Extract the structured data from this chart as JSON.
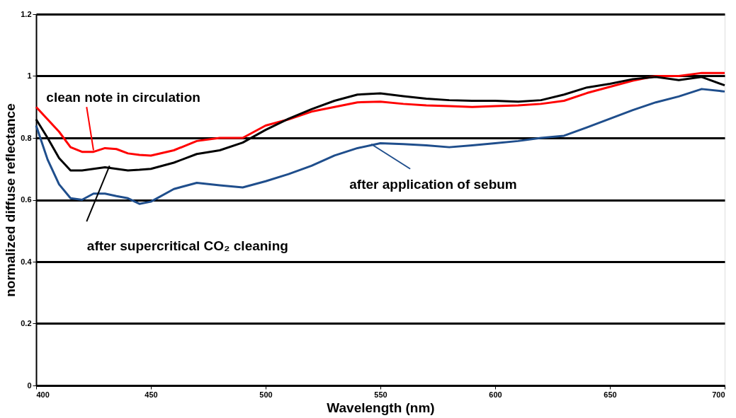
{
  "chart_data": {
    "type": "line",
    "xlabel": "Wavelength (nm)",
    "ylabel": "normalized diffuse reflectance",
    "xlim": [
      400,
      700
    ],
    "xticks": [
      400,
      450,
      500,
      550,
      600,
      650,
      700
    ],
    "ylim": [
      0,
      1.2
    ],
    "yticks": [
      0,
      0.2,
      0.4,
      0.6,
      0.8,
      1,
      1.2
    ],
    "grid": "y",
    "legend": false,
    "marker": "none",
    "line_style": "solid",
    "x": [
      400,
      405,
      410,
      415,
      420,
      425,
      430,
      435,
      440,
      445,
      450,
      460,
      470,
      480,
      490,
      500,
      510,
      520,
      530,
      540,
      550,
      560,
      570,
      580,
      590,
      600,
      610,
      620,
      630,
      640,
      650,
      660,
      670,
      680,
      690,
      700
    ],
    "series": [
      {
        "color": "#ff0000",
        "values": [
          0.9,
          0.86,
          0.82,
          0.77,
          0.755,
          0.755,
          0.767,
          0.764,
          0.75,
          0.745,
          0.743,
          0.76,
          0.79,
          0.8,
          0.8,
          0.84,
          0.86,
          0.885,
          0.9,
          0.915,
          0.917,
          0.91,
          0.905,
          0.903,
          0.9,
          0.903,
          0.905,
          0.91,
          0.92,
          0.945,
          0.965,
          0.985,
          1.0,
          1.0,
          1.01,
          1.01
        ]
      },
      {
        "color": "#000000",
        "values": [
          0.86,
          0.8,
          0.735,
          0.695,
          0.695,
          0.7,
          0.705,
          0.7,
          0.695,
          0.697,
          0.7,
          0.72,
          0.748,
          0.76,
          0.785,
          0.826,
          0.862,
          0.893,
          0.92,
          0.94,
          0.944,
          0.935,
          0.927,
          0.922,
          0.92,
          0.92,
          0.917,
          0.922,
          0.94,
          0.963,
          0.975,
          0.99,
          0.997,
          0.987,
          0.997,
          0.97
        ]
      },
      {
        "color": "#1f4e8c",
        "values": [
          0.84,
          0.73,
          0.65,
          0.605,
          0.6,
          0.62,
          0.62,
          0.612,
          0.605,
          0.587,
          0.594,
          0.635,
          0.655,
          0.647,
          0.64,
          0.66,
          0.683,
          0.71,
          0.743,
          0.767,
          0.783,
          0.78,
          0.776,
          0.77,
          0.776,
          0.783,
          0.79,
          0.8,
          0.807,
          0.834,
          0.862,
          0.89,
          0.915,
          0.934,
          0.958,
          0.95
        ]
      }
    ],
    "annotations": [
      {
        "text": "clean note in circulation",
        "x": 425,
        "y": 0.76
      },
      {
        "text": "after supercritical CO₂  cleaning",
        "x": 432,
        "y": 0.71
      },
      {
        "text": "after application  of sebum",
        "x": 546,
        "y": 0.78
      }
    ]
  }
}
